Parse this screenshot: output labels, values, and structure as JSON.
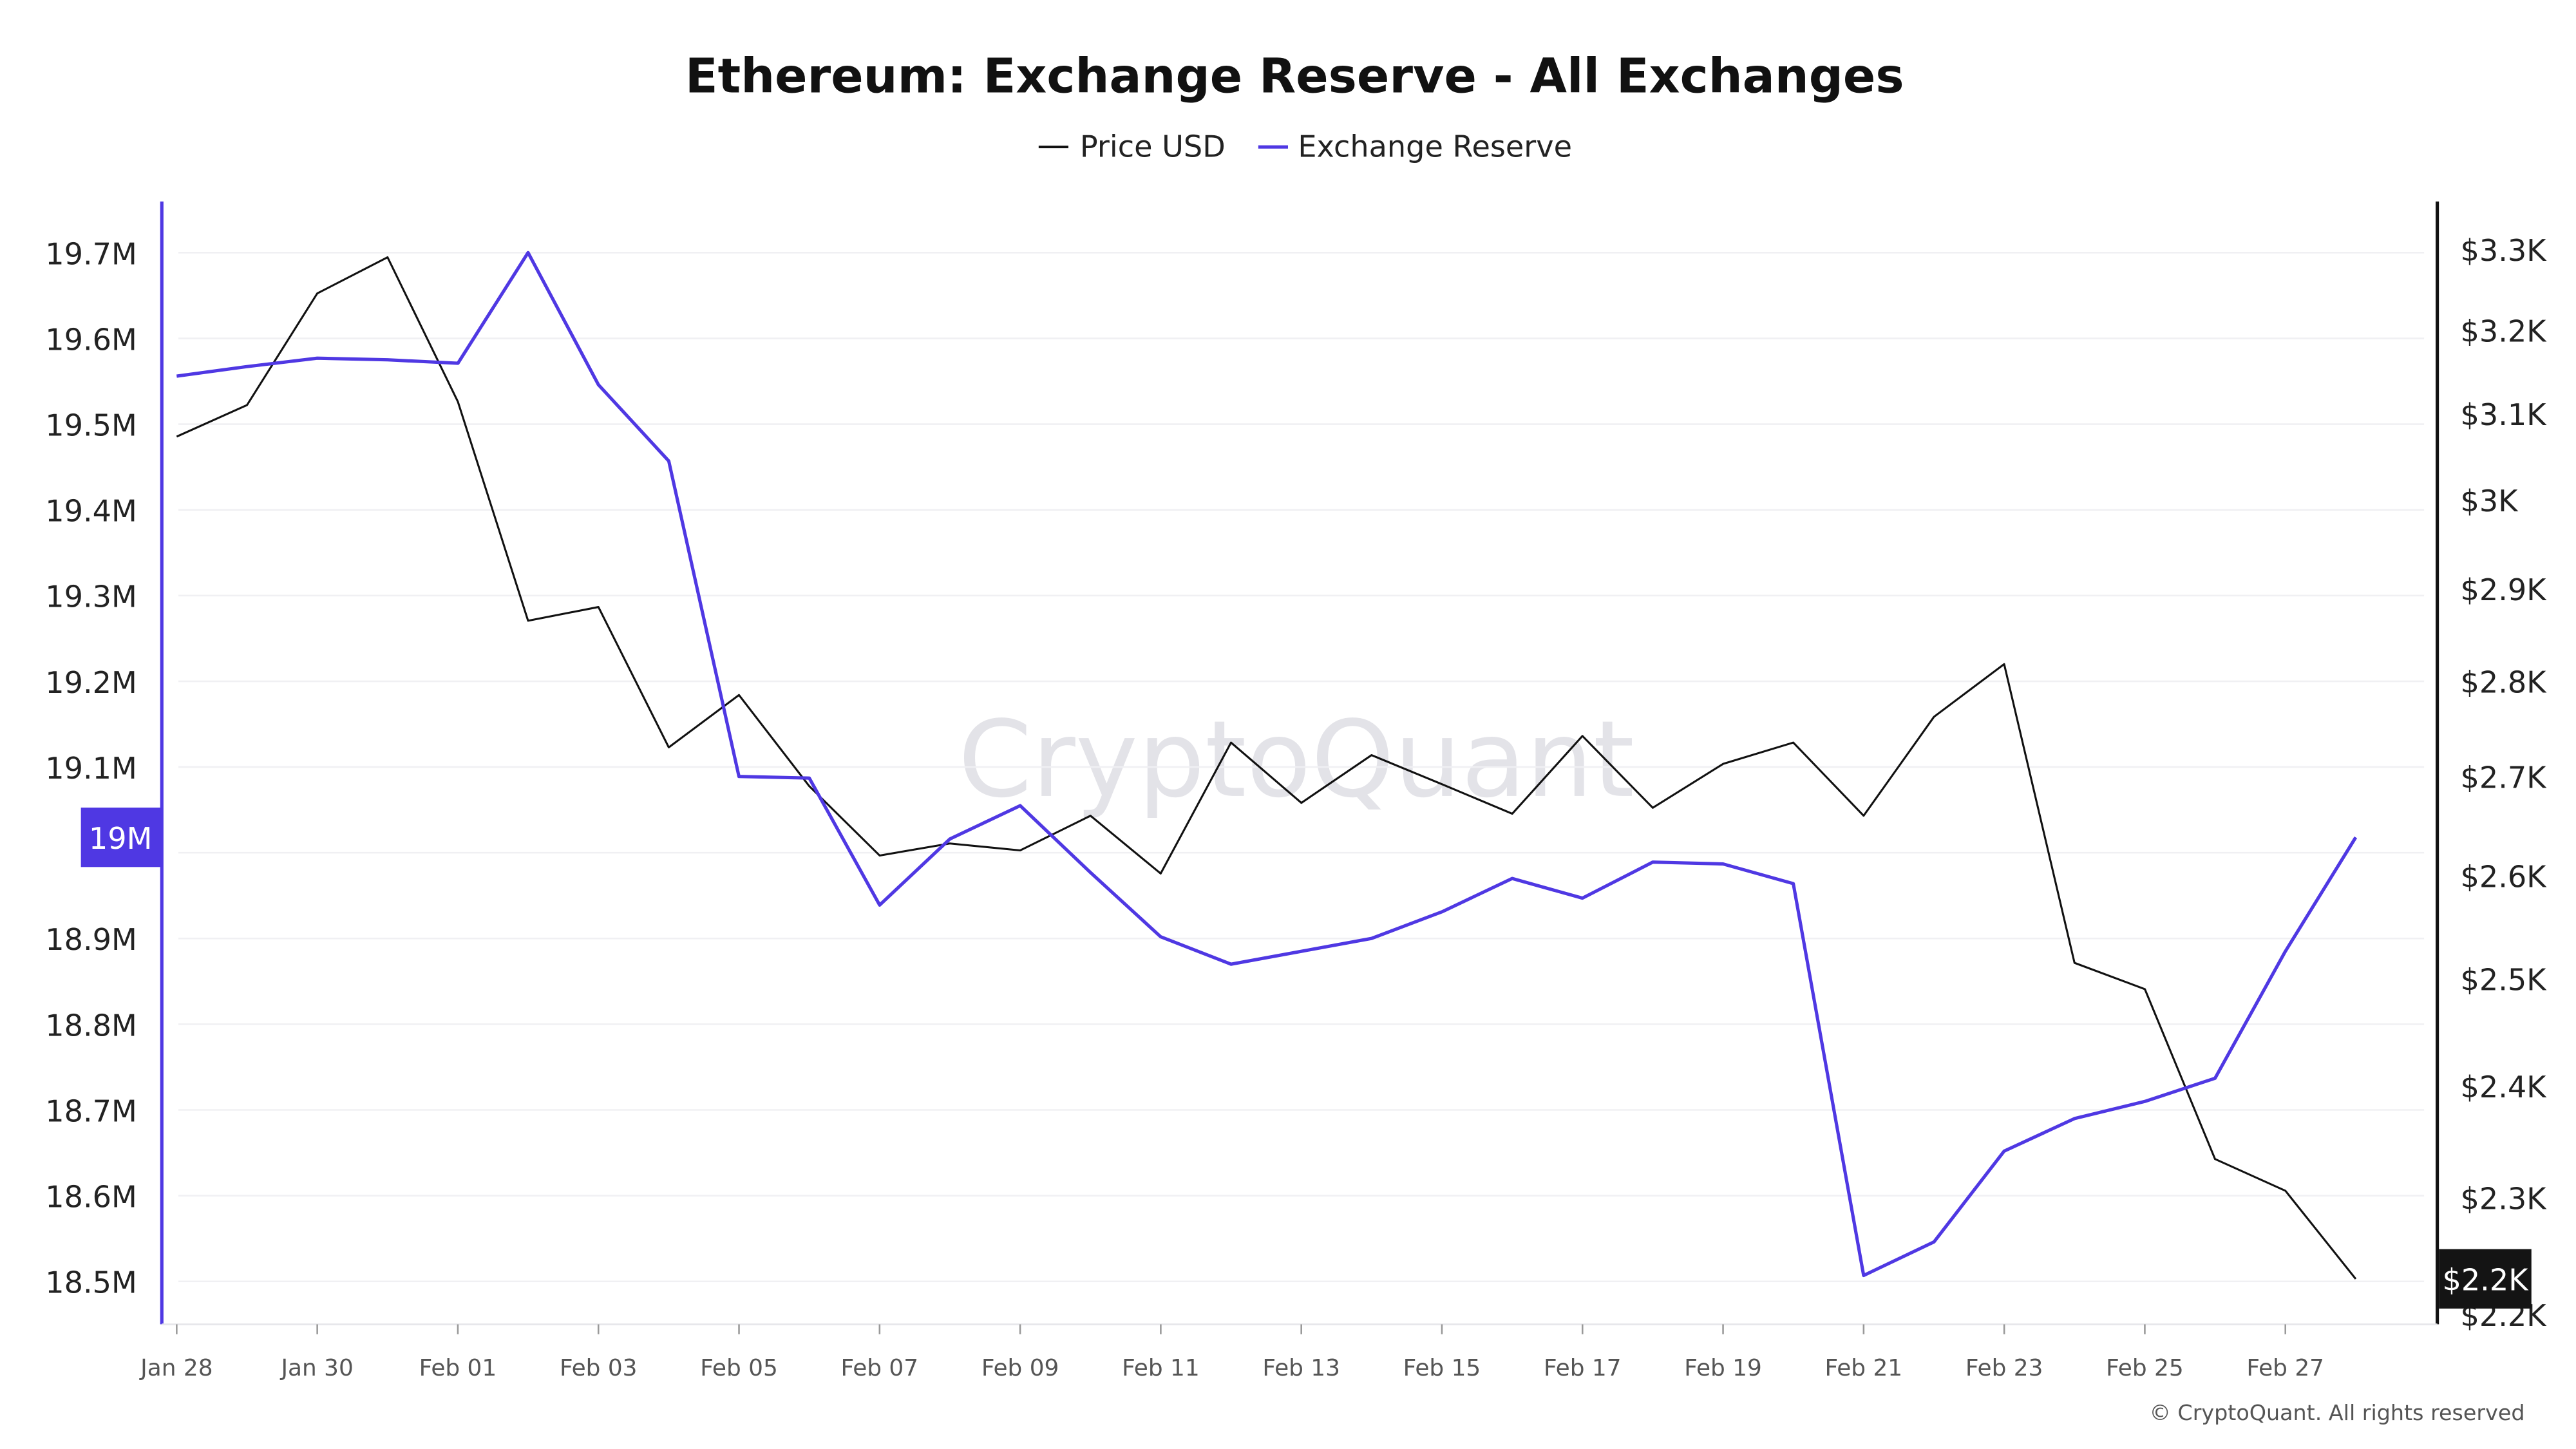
{
  "chart_data": {
    "type": "line",
    "title": "Ethereum: Exchange Reserve - All Exchanges",
    "legend_placement": "top-center",
    "copyright": "© CryptoQuant. All rights reserved",
    "watermark": "CryptoQuant",
    "x": [
      "Jan 28",
      "Jan 29",
      "Jan 30",
      "Jan 31",
      "Feb 01",
      "Feb 02",
      "Feb 03",
      "Feb 04",
      "Feb 05",
      "Feb 06",
      "Feb 07",
      "Feb 08",
      "Feb 09",
      "Feb 10",
      "Feb 11",
      "Feb 12",
      "Feb 13",
      "Feb 14",
      "Feb 15",
      "Feb 16",
      "Feb 17",
      "Feb 18",
      "Feb 19",
      "Feb 20",
      "Feb 21",
      "Feb 22",
      "Feb 23",
      "Feb 24",
      "Feb 25",
      "Feb 26",
      "Feb 27",
      "Feb 28"
    ],
    "x_tick_labels": [
      "Jan 28",
      "Jan 30",
      "Feb 01",
      "Feb 03",
      "Feb 05",
      "Feb 07",
      "Feb 09",
      "Feb 11",
      "Feb 13",
      "Feb 15",
      "Feb 17",
      "Feb 19",
      "Feb 21",
      "Feb 23",
      "Feb 25",
      "Feb 27"
    ],
    "series": [
      {
        "name": "Price USD",
        "axis": "right",
        "color": "#111111",
        "values": [
          3073,
          3110,
          3245,
          3290,
          3114,
          2865,
          2880,
          2730,
          2785,
          2690,
          2620,
          2632,
          2625,
          2660,
          2602,
          2735,
          2673,
          2722,
          2692,
          2662,
          2742,
          2668,
          2713,
          2735,
          2660,
          2762,
          2818,
          2515,
          2490,
          2334,
          2306,
          2230
        ]
      },
      {
        "name": "Exchange Reserve",
        "axis": "left",
        "color": "#4f38e3",
        "values": [
          19556000,
          19567000,
          19577000,
          19575000,
          19571000,
          19700000,
          19546000,
          19457000,
          19089000,
          19087000,
          18939000,
          19016000,
          19055000,
          18977000,
          18902000,
          18870000,
          18885000,
          18900000,
          18931000,
          18970000,
          18947000,
          18989000,
          18987000,
          18964000,
          18507000,
          18546000,
          18652000,
          18690000,
          18710000,
          18737000,
          18885000,
          19018000
        ]
      }
    ],
    "left_axis": {
      "scale": "linear",
      "ylim": [
        18.5,
        19.7
      ],
      "unit": "M",
      "tick_labels": [
        "19.7M",
        "19.6M",
        "19.5M",
        "19.4M",
        "19.3M",
        "19.2M",
        "19.1M",
        "19M",
        "18.9M",
        "18.8M",
        "18.7M",
        "18.6M",
        "18.5M"
      ],
      "current_label": "19M",
      "color": "#4f38e3"
    },
    "right_axis": {
      "scale": "log",
      "ylim": [
        2200,
        3300
      ],
      "tick_values": [
        3300,
        3200,
        3100,
        3000,
        2900,
        2800,
        2700,
        2600,
        2500,
        2400,
        2300,
        2200
      ],
      "tick_labels": [
        "$3.3K",
        "$3.2K",
        "$3.1K",
        "$3K",
        "$2.9K",
        "$2.8K",
        "$2.7K",
        "$2.6K",
        "$2.5K",
        "$2.4K",
        "$2.3K",
        "$2.2K"
      ],
      "current_label": "$2.2K",
      "color": "#111111"
    },
    "grid": true
  }
}
